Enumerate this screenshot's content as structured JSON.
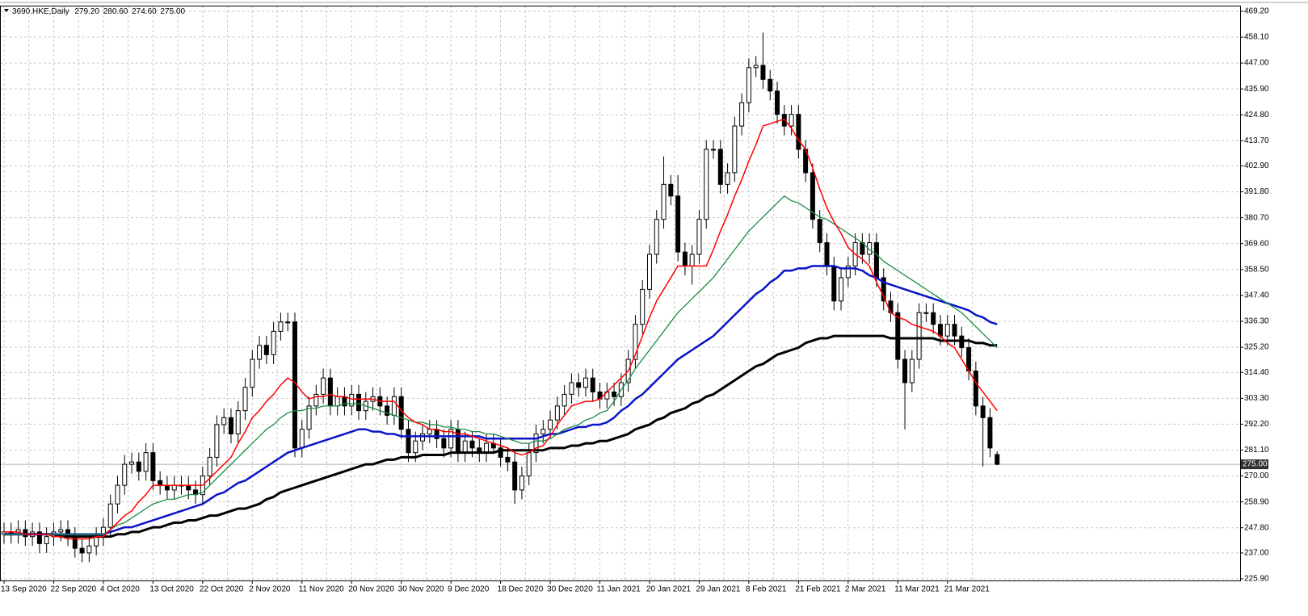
{
  "chart_data": {
    "type": "candlestick",
    "symbol": "3690.HKE,Daily",
    "last_ohlc": [
      {
        "value": 279.2,
        "label": "279.20"
      },
      {
        "value": 280.6,
        "label": "280.60"
      },
      {
        "value": 274.6,
        "label": "274.60"
      },
      {
        "value": 275,
        "label": "275.00"
      }
    ],
    "last_price": {
      "value": 275,
      "label": "275.00"
    },
    "categories": [
      "13 Sep 2020",
      null,
      null,
      null,
      null,
      null,
      null,
      "22 Sep 2020",
      null,
      null,
      null,
      null,
      null,
      null,
      "4 Oct 2020",
      null,
      null,
      null,
      null,
      null,
      null,
      "13 Oct 2020",
      null,
      null,
      null,
      null,
      null,
      null,
      "22 Oct 2020",
      null,
      null,
      null,
      null,
      null,
      null,
      "2 Nov 2020",
      null,
      null,
      null,
      null,
      null,
      null,
      "11 Nov 2020",
      null,
      null,
      null,
      null,
      null,
      null,
      "20 Nov 2020",
      null,
      null,
      null,
      null,
      null,
      null,
      "30 Nov 2020",
      null,
      null,
      null,
      null,
      null,
      null,
      "9 Dec 2020",
      null,
      null,
      null,
      null,
      null,
      null,
      "18 Dec 2020",
      null,
      null,
      null,
      null,
      null,
      null,
      "30 Dec 2020",
      null,
      null,
      null,
      null,
      null,
      null,
      "11 Jan 2021",
      null,
      null,
      null,
      null,
      null,
      null,
      "20 Jan 2021",
      null,
      null,
      null,
      null,
      null,
      null,
      "29 Jan 2021",
      null,
      null,
      null,
      null,
      null,
      null,
      "8 Feb 2021",
      null,
      null,
      null,
      null,
      null,
      null,
      "21 Feb 2021",
      null,
      null,
      null,
      null,
      null,
      null,
      "2 Mar 2021",
      null,
      null,
      null,
      null,
      null,
      null,
      "11 Mar 2021",
      null,
      null,
      null,
      null,
      null,
      null,
      "21 Mar 2021",
      null,
      null,
      null,
      null,
      null,
      null,
      null
    ],
    "open": [
      245,
      246,
      245,
      247,
      244,
      246,
      241,
      244,
      246,
      247,
      244,
      239,
      237,
      240,
      244,
      248,
      258,
      266,
      275,
      276,
      272,
      280,
      268,
      266,
      264,
      266,
      266,
      264,
      262,
      270,
      278,
      292,
      295,
      288,
      298,
      308,
      320,
      326,
      322,
      332,
      336,
      336,
      282,
      290,
      300,
      305,
      312,
      300,
      304,
      300,
      305,
      298,
      302,
      304,
      300,
      296,
      304,
      290,
      280,
      285,
      288,
      290,
      286,
      282,
      290,
      280,
      285,
      282,
      280,
      284,
      282,
      278,
      276,
      264,
      270,
      280,
      288,
      290,
      294,
      300,
      305,
      310,
      308,
      312,
      306,
      303,
      306,
      304,
      310,
      320,
      335,
      350,
      365,
      380,
      395,
      390,
      366,
      360,
      365,
      380,
      410,
      410,
      395,
      400,
      420,
      430,
      445,
      446,
      440,
      435,
      425,
      420,
      425,
      410,
      400,
      380,
      370,
      360,
      345,
      355,
      360,
      370,
      365,
      370,
      355,
      345,
      340,
      320,
      310,
      320,
      340,
      340,
      335,
      330,
      335,
      330,
      325,
      315,
      300,
      295,
      279.2
    ],
    "high": [
      250,
      250,
      251,
      251,
      250,
      250,
      248,
      250,
      251,
      251,
      248,
      243,
      244,
      248,
      252,
      262,
      270,
      279,
      280,
      280,
      284,
      284,
      272,
      270,
      270,
      270,
      270,
      268,
      274,
      282,
      296,
      299,
      299,
      302,
      312,
      324,
      330,
      330,
      336,
      340,
      340,
      340,
      294,
      304,
      309,
      316,
      316,
      308,
      308,
      309,
      309,
      306,
      308,
      308,
      304,
      308,
      308,
      294,
      289,
      292,
      294,
      294,
      290,
      294,
      294,
      289,
      289,
      286,
      288,
      288,
      286,
      282,
      280,
      274,
      284,
      292,
      294,
      298,
      304,
      309,
      314,
      314,
      316,
      316,
      310,
      310,
      310,
      314,
      324,
      339,
      354,
      369,
      384,
      407,
      399,
      399,
      370,
      369,
      384,
      414,
      414,
      414,
      404,
      424,
      434,
      449,
      450,
      460,
      444,
      439,
      429,
      429,
      429,
      414,
      404,
      384,
      374,
      364,
      359,
      364,
      374,
      374,
      374,
      374,
      359,
      349,
      344,
      324,
      324,
      344,
      344,
      344,
      339,
      339,
      339,
      334,
      329,
      319,
      304,
      299,
      280.6
    ],
    "low": [
      241,
      241,
      241,
      240,
      240,
      237,
      237,
      240,
      242,
      240,
      235,
      233,
      233,
      236,
      240,
      244,
      254,
      262,
      271,
      268,
      268,
      264,
      262,
      260,
      260,
      262,
      260,
      258,
      258,
      266,
      274,
      288,
      284,
      284,
      294,
      304,
      316,
      318,
      318,
      328,
      332,
      278,
      278,
      286,
      296,
      301,
      296,
      296,
      296,
      296,
      294,
      294,
      298,
      296,
      292,
      292,
      286,
      276,
      276,
      281,
      284,
      282,
      278,
      278,
      276,
      276,
      278,
      276,
      276,
      280,
      274,
      272,
      258,
      260,
      266,
      276,
      284,
      286,
      290,
      296,
      301,
      304,
      304,
      302,
      299,
      299,
      300,
      300,
      306,
      316,
      331,
      346,
      361,
      376,
      386,
      362,
      356,
      352,
      361,
      376,
      406,
      391,
      391,
      396,
      416,
      426,
      441,
      436,
      431,
      421,
      416,
      416,
      406,
      396,
      376,
      366,
      356,
      341,
      341,
      351,
      356,
      361,
      361,
      351,
      341,
      336,
      316,
      290,
      306,
      316,
      336,
      331,
      326,
      326,
      326,
      321,
      311,
      296,
      274,
      278,
      274.6
    ],
    "close": [
      246,
      245,
      247,
      244,
      246,
      241,
      244,
      246,
      247,
      244,
      239,
      237,
      240,
      244,
      248,
      258,
      266,
      275,
      276,
      272,
      280,
      268,
      266,
      264,
      266,
      266,
      264,
      262,
      270,
      278,
      292,
      295,
      288,
      298,
      308,
      320,
      326,
      322,
      332,
      336,
      336,
      282,
      290,
      300,
      305,
      312,
      300,
      304,
      300,
      305,
      298,
      302,
      304,
      300,
      296,
      304,
      290,
      280,
      285,
      288,
      290,
      286,
      282,
      290,
      280,
      285,
      282,
      280,
      284,
      282,
      278,
      276,
      264,
      270,
      280,
      288,
      290,
      294,
      300,
      305,
      310,
      308,
      312,
      306,
      303,
      306,
      304,
      310,
      320,
      335,
      350,
      365,
      380,
      395,
      390,
      366,
      360,
      365,
      380,
      410,
      410,
      395,
      400,
      420,
      430,
      445,
      446,
      440,
      435,
      425,
      420,
      425,
      410,
      400,
      380,
      370,
      360,
      345,
      355,
      360,
      370,
      365,
      370,
      355,
      345,
      340,
      320,
      310,
      320,
      340,
      340,
      335,
      330,
      335,
      330,
      325,
      315,
      300,
      295,
      282,
      275
    ],
    "up_color": "#ffffff",
    "down_color": "#000000",
    "ma_lines": [
      {
        "color": "#000000",
        "values": [
          245,
          245,
          245,
          245,
          245,
          245,
          245,
          245,
          244,
          244,
          244,
          244,
          244,
          244,
          244,
          244,
          245,
          245,
          246,
          246,
          247,
          248,
          248,
          249,
          250,
          250,
          251,
          251,
          252,
          253,
          253,
          254,
          255,
          256,
          256,
          257,
          258,
          260,
          261,
          263,
          264,
          265,
          266,
          267,
          268,
          269,
          270,
          271,
          272,
          273,
          274,
          275,
          275,
          276,
          277,
          277,
          278,
          278,
          278,
          279,
          279,
          279,
          279,
          280,
          280,
          280,
          280,
          280,
          280,
          280,
          281,
          281,
          281,
          281,
          281,
          281,
          281,
          282,
          282,
          282,
          283,
          283,
          284,
          284,
          285,
          285,
          286,
          287,
          288,
          290,
          291,
          292,
          294,
          295,
          297,
          298,
          299,
          301,
          302,
          304,
          305,
          307,
          309,
          311,
          313,
          315,
          317,
          318,
          320,
          322,
          323,
          324,
          325,
          327,
          328,
          329,
          329,
          330,
          330,
          330,
          330,
          330,
          330,
          330,
          330,
          329,
          329,
          329,
          329,
          329,
          329,
          329,
          328,
          328,
          328,
          328,
          328,
          327,
          327,
          326,
          326
        ]
      },
      {
        "color": "#0a14c8",
        "values": [
          245,
          245,
          245,
          245,
          245,
          245,
          245,
          245,
          245,
          245,
          245,
          245,
          245,
          245,
          245,
          246,
          247,
          248,
          248,
          249,
          250,
          251,
          252,
          253,
          254,
          255,
          256,
          257,
          258,
          260,
          262,
          263,
          265,
          267,
          268,
          270,
          272,
          274,
          276,
          278,
          280,
          281,
          282,
          283,
          284,
          285,
          286,
          287,
          288,
          289,
          290,
          290,
          289,
          289,
          288,
          288,
          287,
          287,
          287,
          287,
          287,
          287,
          287,
          287,
          287,
          287,
          287,
          287,
          286,
          286,
          286,
          286,
          286,
          286,
          286,
          286,
          287,
          288,
          288,
          289,
          290,
          291,
          291,
          292,
          292,
          293,
          295,
          298,
          300,
          303,
          305,
          308,
          311,
          314,
          317,
          320,
          322,
          324,
          326,
          328,
          330,
          333,
          336,
          339,
          342,
          345,
          348,
          350,
          353,
          355,
          358,
          358,
          359,
          359,
          360,
          360,
          360,
          360,
          359,
          359,
          359,
          358,
          356,
          355,
          353,
          352,
          351,
          350,
          349,
          348,
          347,
          346,
          345,
          344,
          343,
          342,
          341,
          339,
          338,
          336,
          335
        ]
      },
      {
        "color": "#1e8c46",
        "values": [
          245,
          245,
          245,
          245,
          245,
          245,
          245,
          245,
          245,
          245,
          245,
          245,
          245,
          245,
          245,
          247,
          249,
          250,
          252,
          254,
          256,
          258,
          259,
          260,
          260,
          261,
          262,
          262,
          263,
          266,
          269,
          272,
          275,
          278,
          281,
          284,
          287,
          290,
          292,
          295,
          297,
          298,
          298,
          299,
          299,
          300,
          300,
          300,
          301,
          301,
          301,
          300,
          299,
          298,
          297,
          296,
          295,
          294,
          293,
          293,
          292,
          292,
          291,
          291,
          290,
          290,
          289,
          289,
          288,
          288,
          287,
          286,
          285,
          284,
          284,
          285,
          285,
          286,
          288,
          290,
          291,
          292,
          294,
          295,
          297,
          298,
          302,
          307,
          311,
          316,
          320,
          324,
          328,
          332,
          336,
          340,
          343,
          346,
          349,
          352,
          355,
          359,
          363,
          367,
          371,
          375,
          378,
          381,
          384,
          387,
          390,
          388,
          387,
          385,
          383,
          381,
          380,
          378,
          376,
          374,
          372,
          370,
          367,
          365,
          362,
          360,
          358,
          356,
          354,
          352,
          350,
          348,
          346,
          344,
          342,
          340,
          337,
          334,
          331,
          328,
          325
        ]
      },
      {
        "color": "#ff0000",
        "values": [
          246,
          246,
          246,
          245,
          245,
          245,
          245,
          244,
          244,
          243,
          243,
          243,
          243,
          244,
          244,
          247,
          250,
          253,
          255,
          259,
          262,
          266,
          266,
          266,
          266,
          266,
          266,
          266,
          266,
          269,
          272,
          275,
          278,
          284,
          289,
          295,
          298,
          302,
          305,
          309,
          312,
          310,
          306,
          303,
          304,
          304,
          305,
          304,
          304,
          303,
          303,
          303,
          303,
          302,
          302,
          302,
          298,
          295,
          293,
          292,
          290,
          290,
          289,
          289,
          288,
          288,
          287,
          286,
          285,
          284,
          283,
          282,
          280,
          279,
          280,
          282,
          283,
          287,
          292,
          296,
          300,
          301,
          302,
          302,
          303,
          306,
          309,
          312,
          315,
          322,
          330,
          338,
          345,
          350,
          355,
          360,
          360,
          360,
          360,
          360,
          367,
          375,
          382,
          390,
          397,
          405,
          412,
          420,
          421,
          422,
          423,
          419,
          414,
          410,
          402,
          393,
          385,
          379,
          374,
          368,
          365,
          363,
          360,
          353,
          347,
          340,
          338,
          337,
          335,
          334,
          333,
          332,
          330,
          327,
          325,
          320,
          315,
          310,
          306,
          302,
          298
        ]
      }
    ],
    "ylim": [
      225.2,
      471.6
    ],
    "yticks": [
      {
        "value": 469.2,
        "label": "469.20"
      },
      {
        "value": 458.1,
        "label": "458.10"
      },
      {
        "value": 447.0,
        "label": "447.00"
      },
      {
        "value": 435.9,
        "label": "435.90"
      },
      {
        "value": 424.8,
        "label": "424.80"
      },
      {
        "value": 413.7,
        "label": "413.70"
      },
      {
        "value": 402.9,
        "label": "402.90"
      },
      {
        "value": 391.8,
        "label": "391.80"
      },
      {
        "value": 380.7,
        "label": "380.70"
      },
      {
        "value": 369.6,
        "label": "369.60"
      },
      {
        "value": 358.5,
        "label": "358.50"
      },
      {
        "value": 347.4,
        "label": "347.40"
      },
      {
        "value": 336.3,
        "label": "336.30"
      },
      {
        "value": 325.2,
        "label": "325.20"
      },
      {
        "value": 314.4,
        "label": "314.40"
      },
      {
        "value": 303.3,
        "label": "303.30"
      },
      {
        "value": 292.2,
        "label": "292.20"
      },
      {
        "value": 281.1,
        "label": "281.10"
      },
      {
        "value": 270.0,
        "label": "270.00"
      },
      {
        "value": 258.9,
        "label": "258.90"
      },
      {
        "value": 247.8,
        "label": "247.80"
      },
      {
        "value": 237.0,
        "label": "237.00"
      },
      {
        "value": 225.9,
        "label": "225.90"
      }
    ],
    "grid": true
  }
}
